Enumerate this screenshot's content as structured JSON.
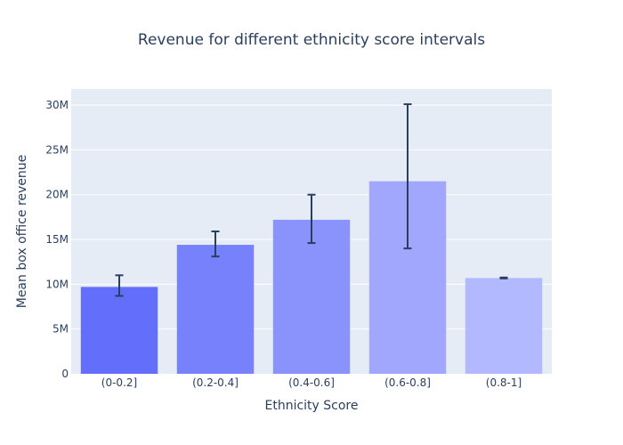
{
  "chart_data": {
    "type": "bar",
    "title": "Revenue for different ethnicity score intervals",
    "xlabel": "Ethnicity Score",
    "ylabel": "Mean box office revenue",
    "categories": [
      "(0-0.2]",
      "(0.2-0.4]",
      "(0.4-0.6]",
      "(0.6-0.8]",
      "(0.8-1]"
    ],
    "values": [
      9700000,
      14400000,
      17200000,
      21500000,
      10700000
    ],
    "error_low": [
      8700000,
      13100000,
      14600000,
      14000000,
      10650000
    ],
    "error_high": [
      11000000,
      15900000,
      20000000,
      30100000,
      10750000
    ],
    "ylim": [
      0,
      31800000
    ],
    "yticks": [
      0,
      5000000,
      10000000,
      15000000,
      20000000,
      25000000,
      30000000
    ],
    "ytick_labels": [
      "0",
      "5M",
      "10M",
      "15M",
      "20M",
      "25M",
      "30M"
    ],
    "bar_colors": [
      "#636efa",
      "#7681fb",
      "#8a93fc",
      "#a0a7fd",
      "#b3b9fe"
    ],
    "error_color": "#2a3f5f",
    "plot_bg": "#e5ecf6",
    "grid": true
  }
}
